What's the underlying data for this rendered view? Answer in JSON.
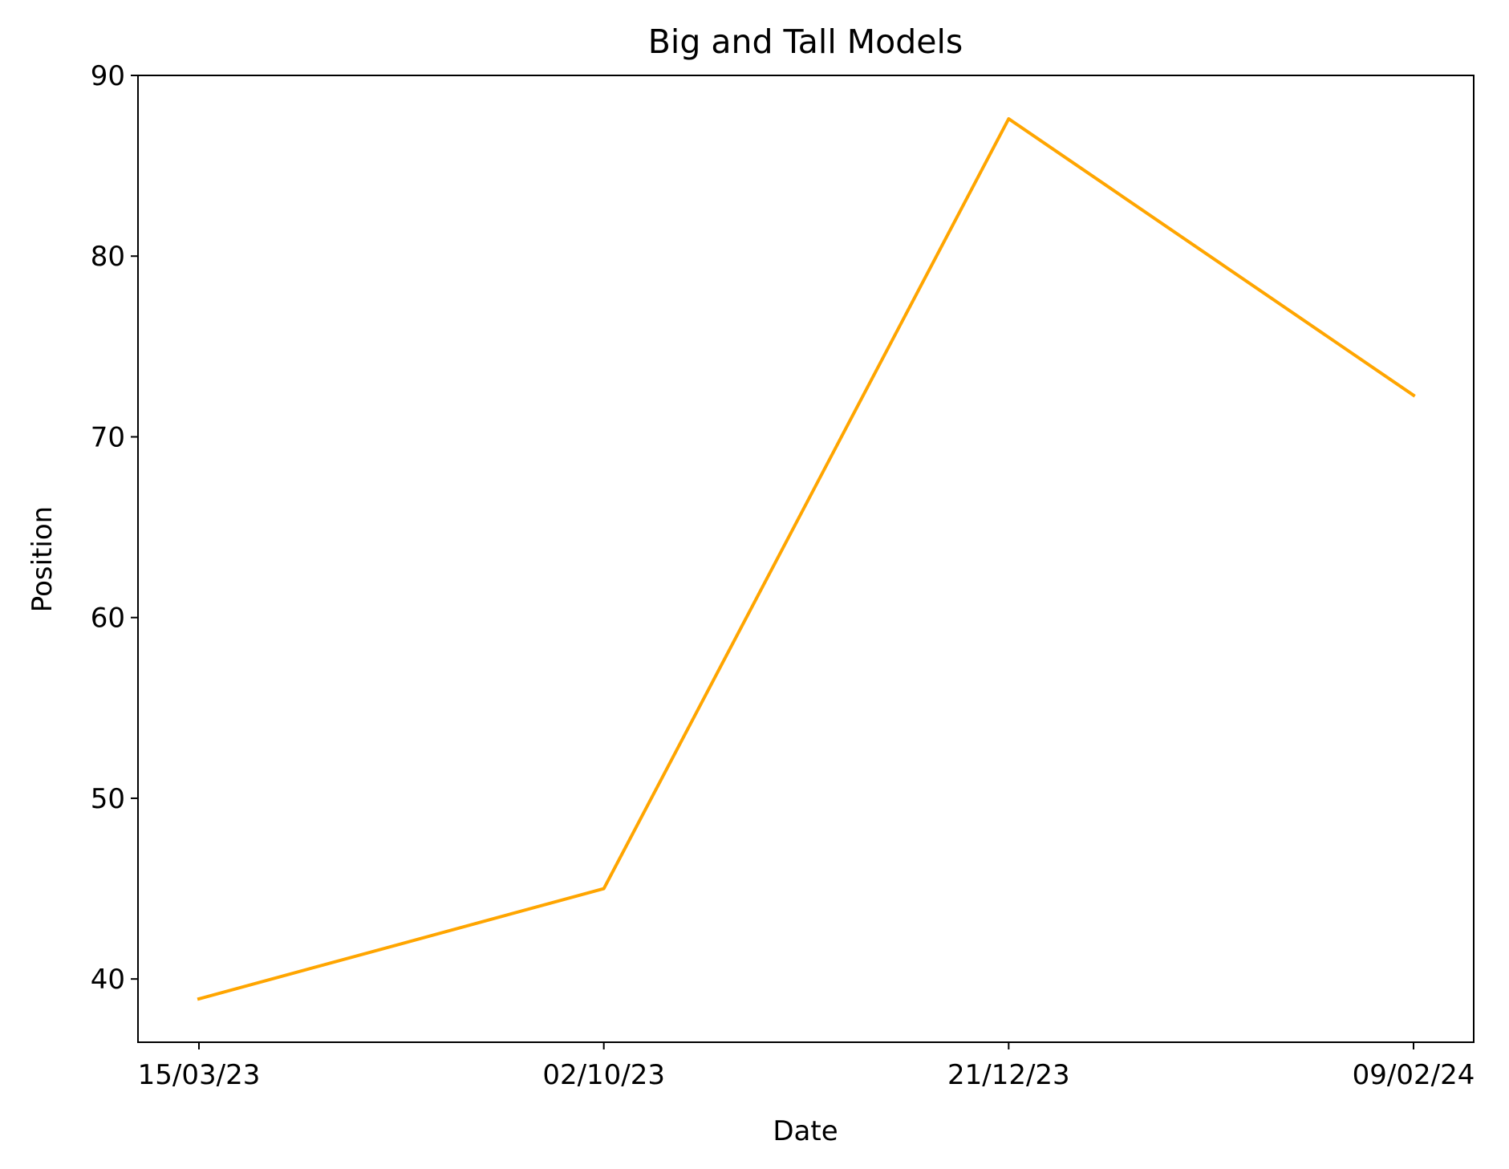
{
  "chart_data": {
    "type": "line",
    "title": "Big and Tall Models",
    "xlabel": "Date",
    "ylabel": "Position",
    "categories": [
      "15/03/23",
      "02/10/23",
      "21/12/23",
      "09/02/24"
    ],
    "series": [
      {
        "values": [
          38.9,
          45.0,
          87.6,
          72.3
        ],
        "color": "#ffa500"
      }
    ],
    "ylim": [
      36.5,
      90
    ],
    "yticks": [
      40,
      50,
      60,
      70,
      80,
      90
    ],
    "grid": false,
    "legend": "none"
  }
}
